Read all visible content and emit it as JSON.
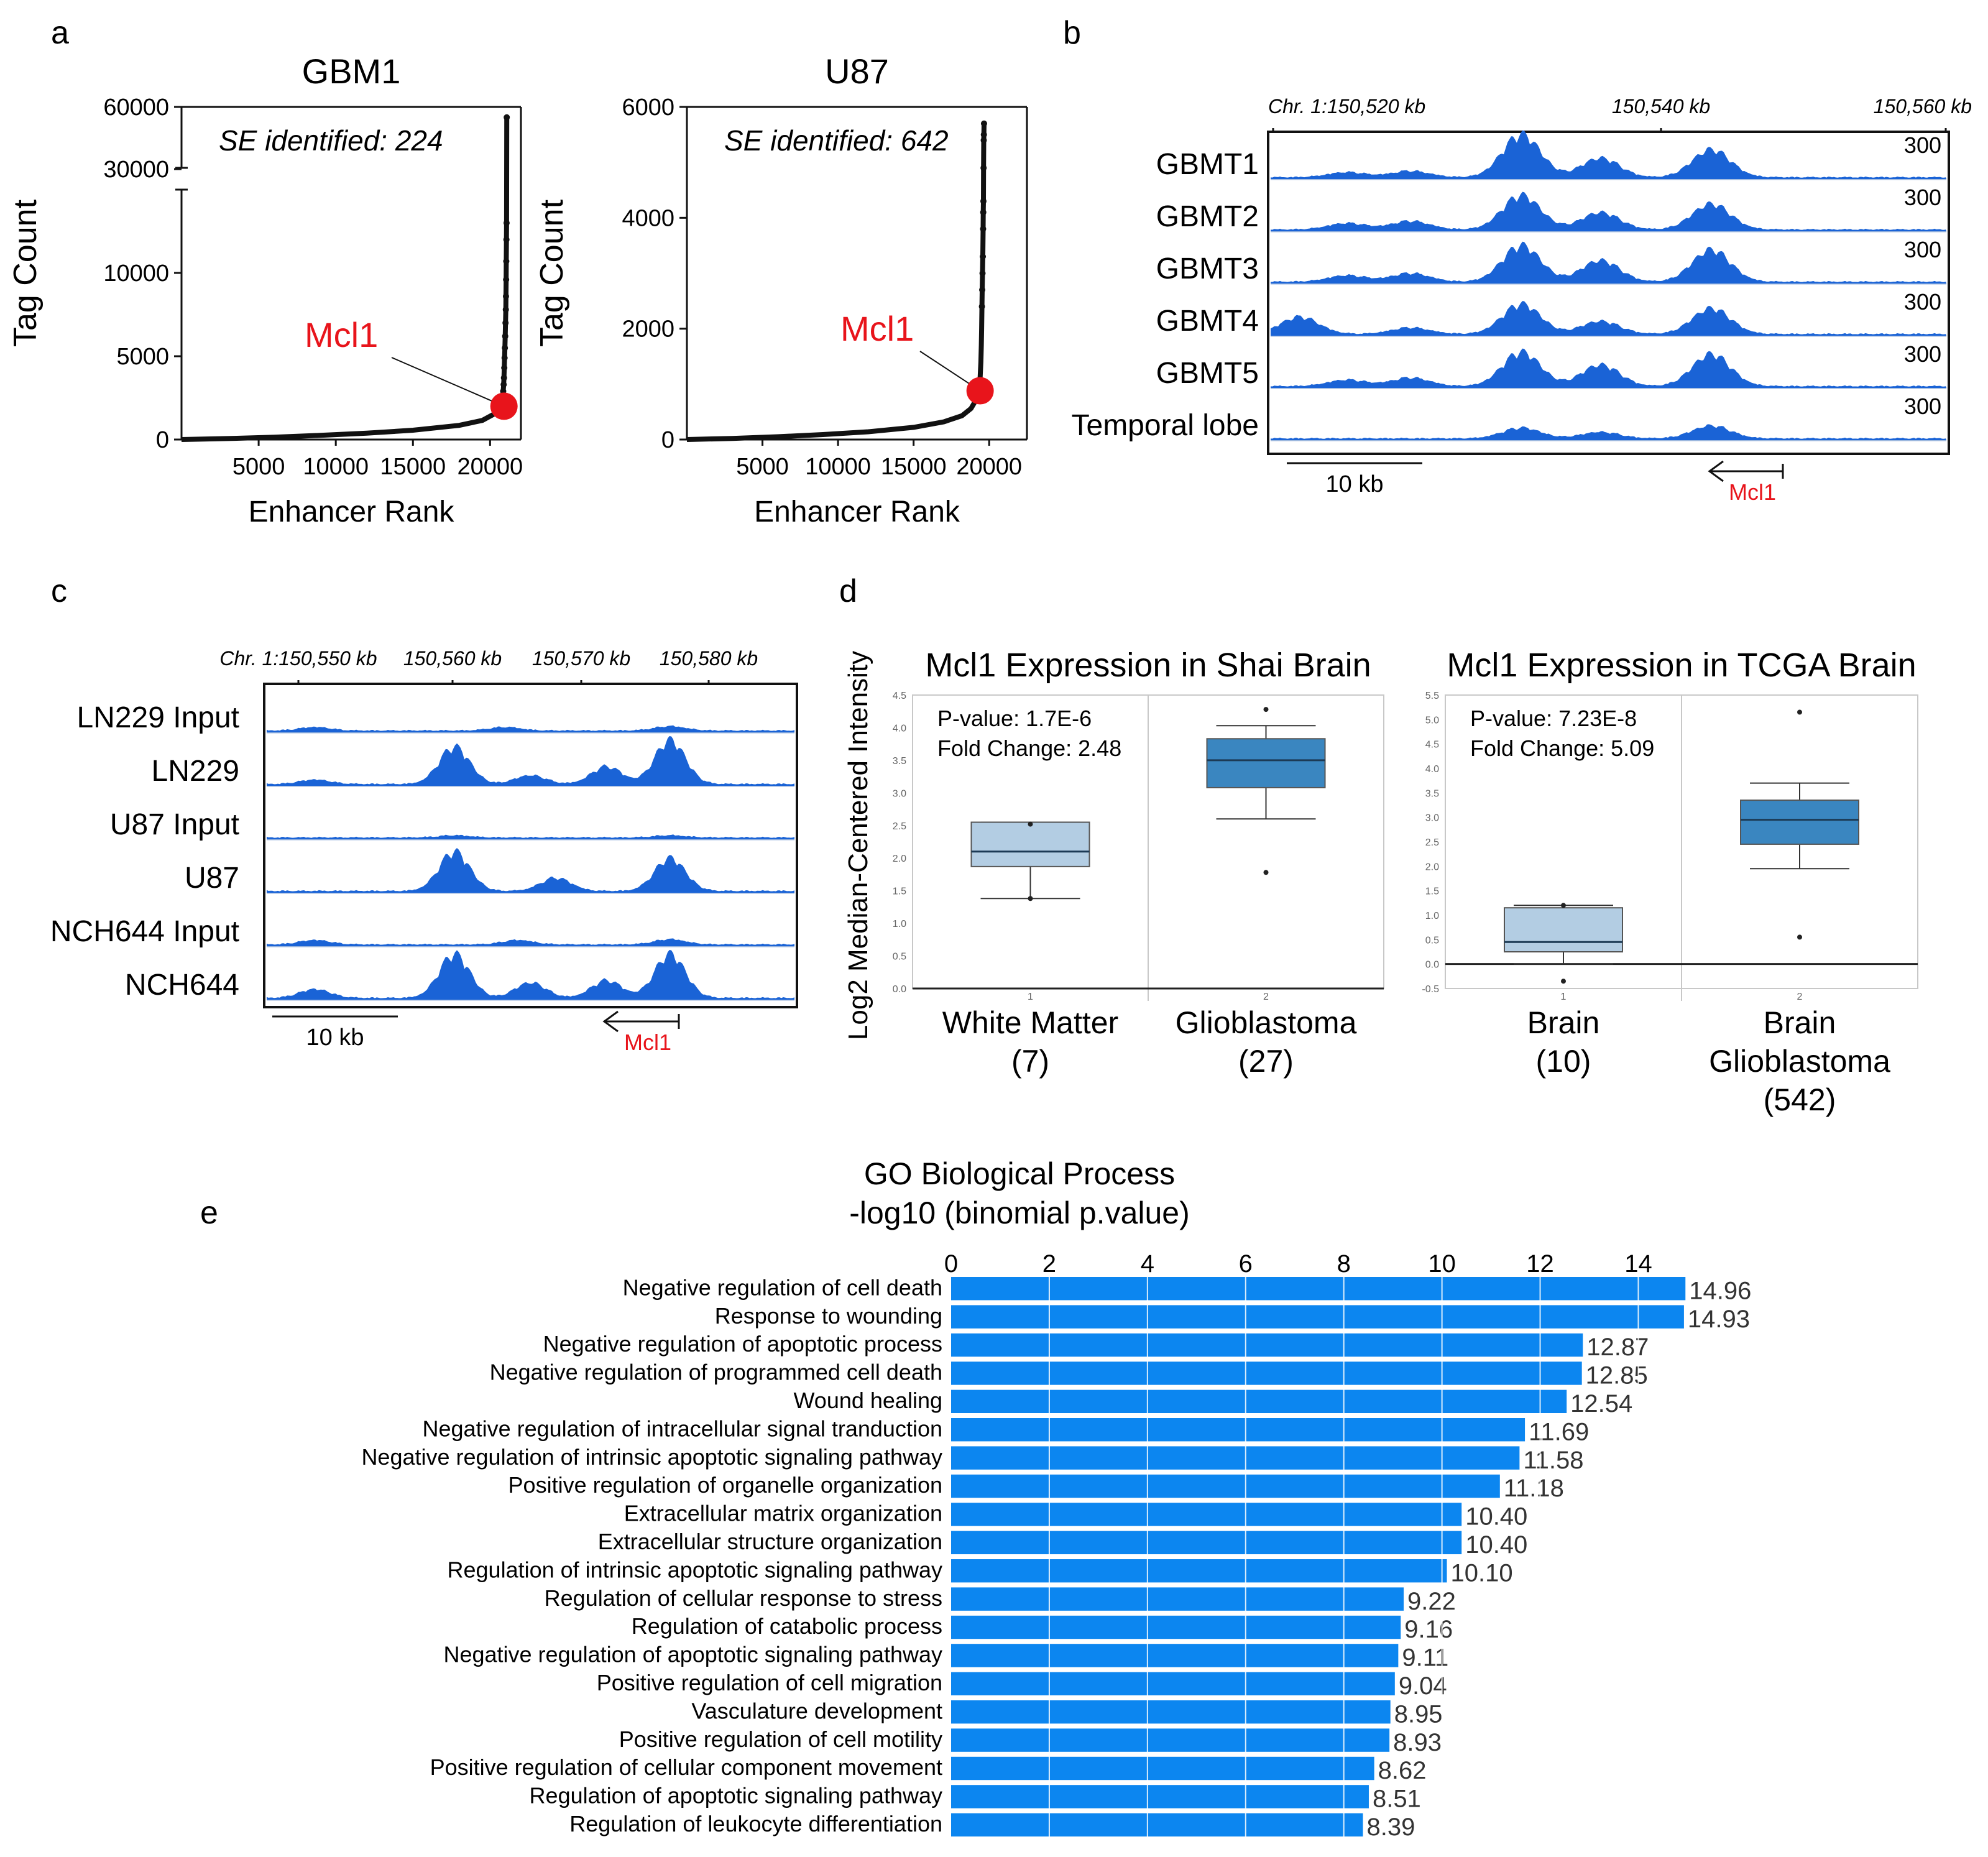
{
  "panels": {
    "a": "a",
    "b": "b",
    "c": "c",
    "d": "d",
    "e": "e"
  },
  "chart_data": [
    {
      "type": "scatter",
      "panel": "a",
      "title": "GBM1",
      "xlabel": "Enhancer Rank",
      "ylabel": "Tag Count",
      "annotation": "SE identified: 224",
      "highlight_label": "Mcl1",
      "highlight_point": [
        20900,
        2000
      ],
      "xticks": [
        "5000",
        "10000",
        "15000",
        "20000"
      ],
      "yticks": [
        "0",
        "5000",
        "10000",
        "30000",
        "60000"
      ],
      "axis_break": true,
      "xlim": [
        0,
        22000
      ],
      "ylim_lower": [
        0,
        15000
      ],
      "ylim_upper": [
        25000,
        60000
      ],
      "x": [
        0,
        3000,
        6000,
        9000,
        12000,
        15000,
        18000,
        19500,
        20200,
        20500,
        20700,
        20800,
        20850,
        20880,
        20900,
        20920,
        20940,
        20960,
        20980,
        21000,
        21020,
        21030,
        21040,
        21050,
        21060,
        21070,
        21080
      ],
      "y": [
        0,
        60,
        140,
        250,
        380,
        560,
        850,
        1150,
        1500,
        1800,
        2100,
        2500,
        2900,
        3300,
        3700,
        4300,
        4900,
        5500,
        6200,
        7000,
        7800,
        8600,
        9600,
        10700,
        12000,
        13000,
        54000
      ]
    },
    {
      "type": "scatter",
      "panel": "a",
      "title": "U87",
      "xlabel": "Enhancer Rank",
      "ylabel": "Tag Count",
      "annotation": "SE identified: 642",
      "highlight_label": "Mcl1",
      "highlight_point": [
        19400,
        880
      ],
      "xticks": [
        "5000",
        "10000",
        "15000",
        "20000"
      ],
      "yticks": [
        "0",
        "2000",
        "4000",
        "6000"
      ],
      "xlim": [
        0,
        22500
      ],
      "ylim": [
        0,
        6000
      ],
      "x": [
        0,
        3000,
        6000,
        9000,
        12000,
        15000,
        17000,
        18200,
        18800,
        19100,
        19300,
        19400,
        19450,
        19480,
        19500,
        19520,
        19540,
        19560,
        19580,
        19600,
        19610,
        19620,
        19630,
        19640,
        19650,
        19660
      ],
      "y": [
        0,
        20,
        50,
        90,
        140,
        220,
        320,
        430,
        560,
        700,
        880,
        1100,
        1400,
        1700,
        2000,
        2400,
        2700,
        3000,
        3300,
        3800,
        4100,
        4300,
        4900,
        5400,
        5500,
        5700
      ]
    },
    {
      "type": "area",
      "panel": "b",
      "coordinate_labels": [
        "Chr. 1:150,520 kb",
        "150,540 kb",
        "150,560 kb"
      ],
      "scale_label": "10 kb",
      "gene_label": "Mcl1",
      "tracks": [
        {
          "name": "GBMT1",
          "max": "300",
          "peaks": [
            [
              150523,
              0.12
            ],
            [
              150527,
              0.15
            ],
            [
              150534,
              1.0
            ],
            [
              150539,
              0.45
            ],
            [
              150546,
              0.65
            ]
          ]
        },
        {
          "name": "GBMT2",
          "max": "300",
          "peaks": [
            [
              150523,
              0.15
            ],
            [
              150527,
              0.2
            ],
            [
              150534,
              0.8
            ],
            [
              150539,
              0.4
            ],
            [
              150546,
              0.6
            ]
          ]
        },
        {
          "name": "GBMT3",
          "max": "300",
          "peaks": [
            [
              150523,
              0.15
            ],
            [
              150527,
              0.2
            ],
            [
              150534,
              0.85
            ],
            [
              150539,
              0.5
            ],
            [
              150546,
              0.75
            ]
          ]
        },
        {
          "name": "GBMT4",
          "max": "300",
          "peaks": [
            [
              150520,
              0.4
            ],
            [
              150527,
              0.15
            ],
            [
              150534,
              0.7
            ],
            [
              150539,
              0.3
            ],
            [
              150546,
              0.6
            ]
          ]
        },
        {
          "name": "GBMT5",
          "max": "300",
          "peaks": [
            [
              150523,
              0.15
            ],
            [
              150527,
              0.2
            ],
            [
              150534,
              0.8
            ],
            [
              150539,
              0.5
            ],
            [
              150546,
              0.75
            ]
          ]
        },
        {
          "name": "Temporal lobe",
          "max": "300",
          "peaks": [
            [
              150534,
              0.25
            ],
            [
              150539,
              0.15
            ],
            [
              150546,
              0.3
            ]
          ]
        }
      ]
    },
    {
      "type": "area",
      "panel": "c",
      "coordinate_labels": [
        "Chr. 1:150,550 kb",
        "150,560 kb",
        "150,570 kb",
        "150,580 kb"
      ],
      "scale_label": "10 kb",
      "gene_label": "Mcl1",
      "tracks": [
        {
          "name": "LN229 Input",
          "peaks": [
            [
              150550,
              0.08
            ],
            [
              150565,
              0.08
            ],
            [
              150578,
              0.1
            ]
          ]
        },
        {
          "name": "LN229",
          "peaks": [
            [
              150550,
              0.1
            ],
            [
              150561,
              0.85
            ],
            [
              150567,
              0.2
            ],
            [
              150573,
              0.4
            ],
            [
              150578,
              1.0
            ]
          ]
        },
        {
          "name": "U87 Input",
          "peaks": [
            [
              150561,
              0.05
            ],
            [
              150578,
              0.05
            ]
          ]
        },
        {
          "name": "U87",
          "peaks": [
            [
              150561,
              0.9
            ],
            [
              150569,
              0.3
            ],
            [
              150578,
              0.75
            ]
          ]
        },
        {
          "name": "NCH644 Input",
          "peaks": [
            [
              150550,
              0.1
            ],
            [
              150566,
              0.1
            ],
            [
              150578,
              0.12
            ]
          ]
        },
        {
          "name": "NCH644",
          "peaks": [
            [
              150550,
              0.2
            ],
            [
              150561,
              1.0
            ],
            [
              150567,
              0.35
            ],
            [
              150573,
              0.4
            ],
            [
              150578,
              1.0
            ]
          ]
        }
      ]
    },
    {
      "type": "box",
      "panel": "d",
      "title": "Mcl1 Expression in Shai Brain",
      "ylabel": "Log2 Median-Centered Intensity",
      "p_value": "P-value: 1.7E-6",
      "fold_change": "Fold Change: 2.48",
      "ylim": [
        0,
        4.5
      ],
      "yticks": [
        "0.0",
        "0.5",
        "1.0",
        "1.5",
        "2.0",
        "2.5",
        "3.0",
        "3.5",
        "4.0",
        "4.5"
      ],
      "xticks": [
        "1",
        "2"
      ],
      "groups": [
        {
          "name": "White Matter",
          "n": "(7)",
          "whisker_low": 1.38,
          "q1": 1.87,
          "median": 2.1,
          "q3": 2.55,
          "whisker_high": 2.55,
          "outliers": [
            1.38,
            2.52
          ]
        },
        {
          "name": "Glioblastoma",
          "n": "(27)",
          "whisker_low": 2.6,
          "q1": 3.08,
          "median": 3.5,
          "q3": 3.83,
          "whisker_high": 4.03,
          "outliers": [
            1.78,
            4.28
          ]
        }
      ]
    },
    {
      "type": "box",
      "panel": "d",
      "title": "Mcl1 Expression in TCGA Brain",
      "p_value": "P-value: 7.23E-8",
      "fold_change": "Fold Change: 5.09",
      "ylim": [
        -0.5,
        5.5
      ],
      "yticks": [
        "-0.5",
        "0.0",
        "0.5",
        "1.0",
        "1.5",
        "2.0",
        "2.5",
        "3.0",
        "3.5",
        "4.0",
        "4.5",
        "5.0",
        "5.5"
      ],
      "xticks": [
        "1",
        "2"
      ],
      "groups": [
        {
          "name": "Brain",
          "n": "(10)",
          "whisker_low": 0.0,
          "q1": 0.25,
          "median": 0.45,
          "q3": 1.15,
          "whisker_high": 1.2,
          "outliers": [
            -0.35,
            1.2
          ]
        },
        {
          "name": "Brain Glioblastoma",
          "n": "(542)",
          "whisker_low": 1.95,
          "q1": 2.45,
          "median": 2.95,
          "q3": 3.35,
          "whisker_high": 3.7,
          "outliers": [
            0.55,
            5.15
          ]
        }
      ]
    },
    {
      "type": "bar",
      "orientation": "horizontal",
      "panel": "e",
      "title": "GO Biological Process",
      "subtitle": "-log10 (binomial p.value)",
      "xlim": [
        0,
        15
      ],
      "xticks": [
        "0",
        "2",
        "4",
        "6",
        "8",
        "10",
        "12",
        "14"
      ],
      "categories": [
        "Negative regulation of cell death",
        "Response to wounding",
        "Negative regulation of apoptotic process",
        "Negative regulation of programmed cell death",
        "Wound healing",
        "Negative regulation of intracellular signal tranduction",
        "Negative regulation of intrinsic apoptotic signaling pathway",
        "Positive regulation of organelle organization",
        "Extracellular matrix organization",
        "Extracellular structure organization",
        "Regulation of intrinsic apoptotic signaling pathway",
        "Regulation of cellular response to stress",
        "Regulation of catabolic process",
        "Negative regulation of apoptotic signaling pathway",
        "Positive regulation of cell migration",
        "Vasculature development",
        "Positive regulation of cell motility",
        "Positive regulation of cellular component movement",
        "Regulation of apoptotic signaling pathway",
        "Regulation of leukocyte differentiation"
      ],
      "values": [
        14.96,
        14.93,
        12.87,
        12.85,
        12.54,
        11.69,
        11.58,
        11.18,
        10.4,
        10.4,
        10.1,
        9.22,
        9.16,
        9.11,
        9.04,
        8.95,
        8.93,
        8.62,
        8.51,
        8.39
      ],
      "value_labels": [
        "14.96",
        "14.93",
        "12.87",
        "12.85",
        "12.54",
        "11.69",
        "11.58",
        "11.18",
        "10.40",
        "10.40",
        "10.10",
        "9.22",
        "9.16",
        "9.11",
        "9.04",
        "8.95",
        "8.93",
        "8.62",
        "8.51",
        "8.39"
      ]
    }
  ],
  "colors": {
    "track": "#1a63d6",
    "bar": "#0c86f0",
    "highlight": "#e8141b",
    "box_light": "#b3cde3",
    "box_dark": "#3a86c0"
  }
}
